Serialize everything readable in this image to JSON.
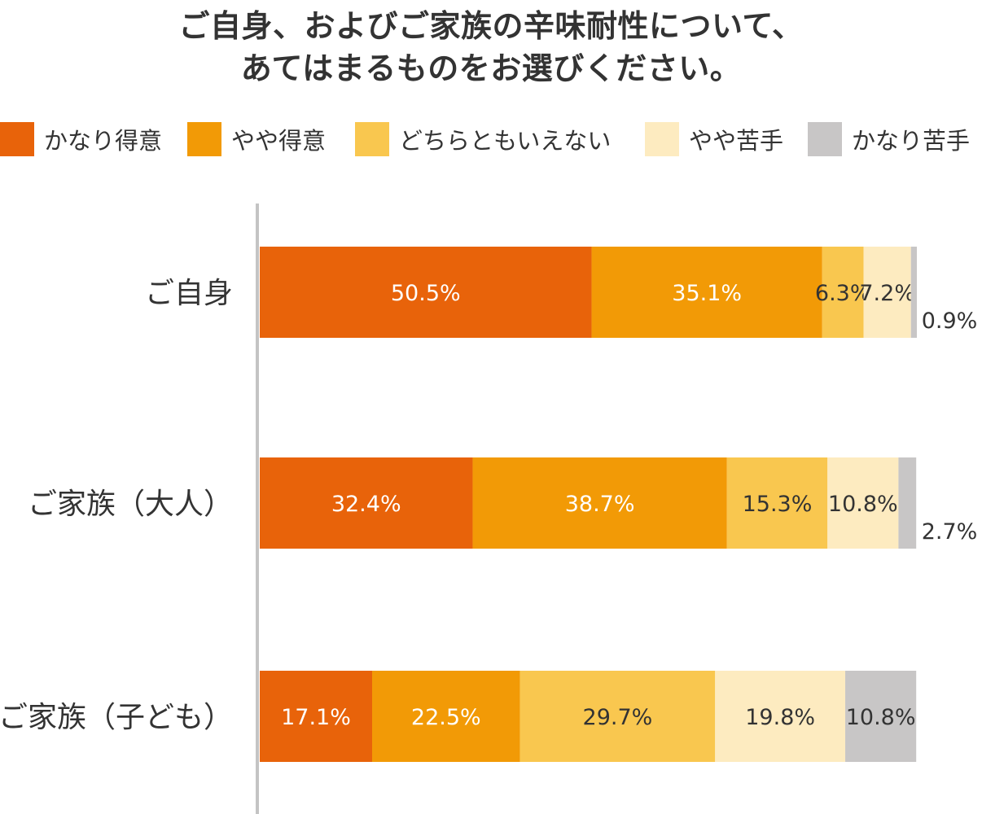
{
  "title_lines": [
    "ご自身、およびご家族の辛味耐性について、",
    "あてはまるものをお選びください。"
  ],
  "chart_data": {
    "type": "bar",
    "orientation": "horizontal",
    "stacked": true,
    "unit": "%",
    "categories": [
      "ご自身",
      "ご家族（大人）",
      "ご家族（子ども）"
    ],
    "series": [
      {
        "name": "かなり得意",
        "color": "#E8630A",
        "values": [
          50.5,
          32.4,
          17.1
        ]
      },
      {
        "name": "やや得意",
        "color": "#F29A06",
        "values": [
          35.1,
          38.7,
          22.5
        ]
      },
      {
        "name": "どちらともいえない",
        "color": "#F9C74F",
        "values": [
          6.3,
          15.3,
          29.7
        ]
      },
      {
        "name": "やや苦手",
        "color": "#FDEBC0",
        "values": [
          7.2,
          10.8,
          19.8
        ]
      },
      {
        "name": "かなり苦手",
        "color": "#C8C6C6",
        "values": [
          0.9,
          2.7,
          10.8
        ]
      }
    ],
    "data_labels": [
      [
        "50.5%",
        "35.1%",
        "6.3%",
        "7.2%",
        "0.9%"
      ],
      [
        "32.4%",
        "38.7%",
        "15.3%",
        "10.8%",
        "2.7%"
      ],
      [
        "17.1%",
        "22.5%",
        "29.7%",
        "19.8%",
        "10.8%"
      ]
    ],
    "label_colors": [
      [
        "#ffffff",
        "#ffffff",
        "#333333",
        "#333333",
        "#333333"
      ],
      [
        "#ffffff",
        "#ffffff",
        "#333333",
        "#333333",
        "#333333"
      ],
      [
        "#ffffff",
        "#ffffff",
        "#333333",
        "#333333",
        "#333333"
      ]
    ],
    "xlim": [
      0,
      100
    ],
    "grid": false,
    "legend_position": "top"
  }
}
